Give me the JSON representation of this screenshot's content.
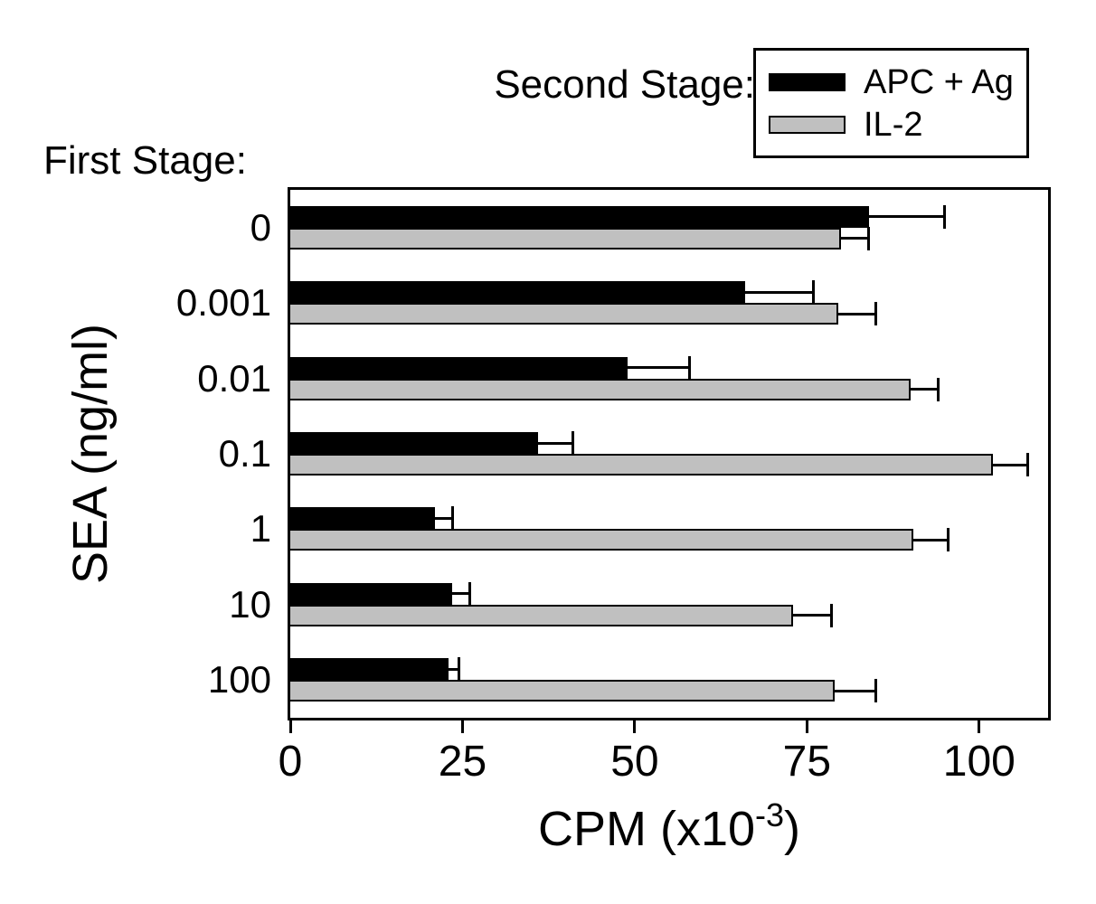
{
  "chart_data": {
    "type": "bar",
    "orientation": "horizontal",
    "legend_title": "Second Stage:",
    "y_axis_annotation": "First Stage:",
    "ylabel": "SEA (ng/ml)",
    "xlabel": "CPM (x10-3)",
    "xlabel_parts": {
      "prefix": "CPM (x10",
      "exponent": "-3",
      "suffix": ")"
    },
    "categories": [
      "0",
      "0.001",
      "0.01",
      "0.1",
      "1",
      "10",
      "100"
    ],
    "series": [
      {
        "name": "APC + Ag",
        "color": "#000000",
        "values": [
          84,
          66,
          49,
          36,
          21,
          23.5,
          23
        ],
        "errors": [
          11,
          10,
          9,
          5,
          2.5,
          2.5,
          1.5
        ]
      },
      {
        "name": "IL-2",
        "color": "#c0c0c0",
        "values": [
          80,
          79.5,
          90,
          102,
          90.5,
          73,
          79
        ],
        "errors": [
          4,
          5.5,
          4,
          5,
          5,
          5.5,
          6
        ]
      }
    ],
    "xticks": [
      0,
      25,
      50,
      75,
      100
    ],
    "xlim": [
      0,
      110
    ],
    "grid": false,
    "error_bars": true,
    "legend_position": "top-right",
    "values_unit": "CPM x 10^3"
  },
  "colors": {
    "background": "#ffffff",
    "frame": "#000000",
    "bar_apc_ag": "#000000",
    "bar_il2": "#c0c0c0"
  }
}
